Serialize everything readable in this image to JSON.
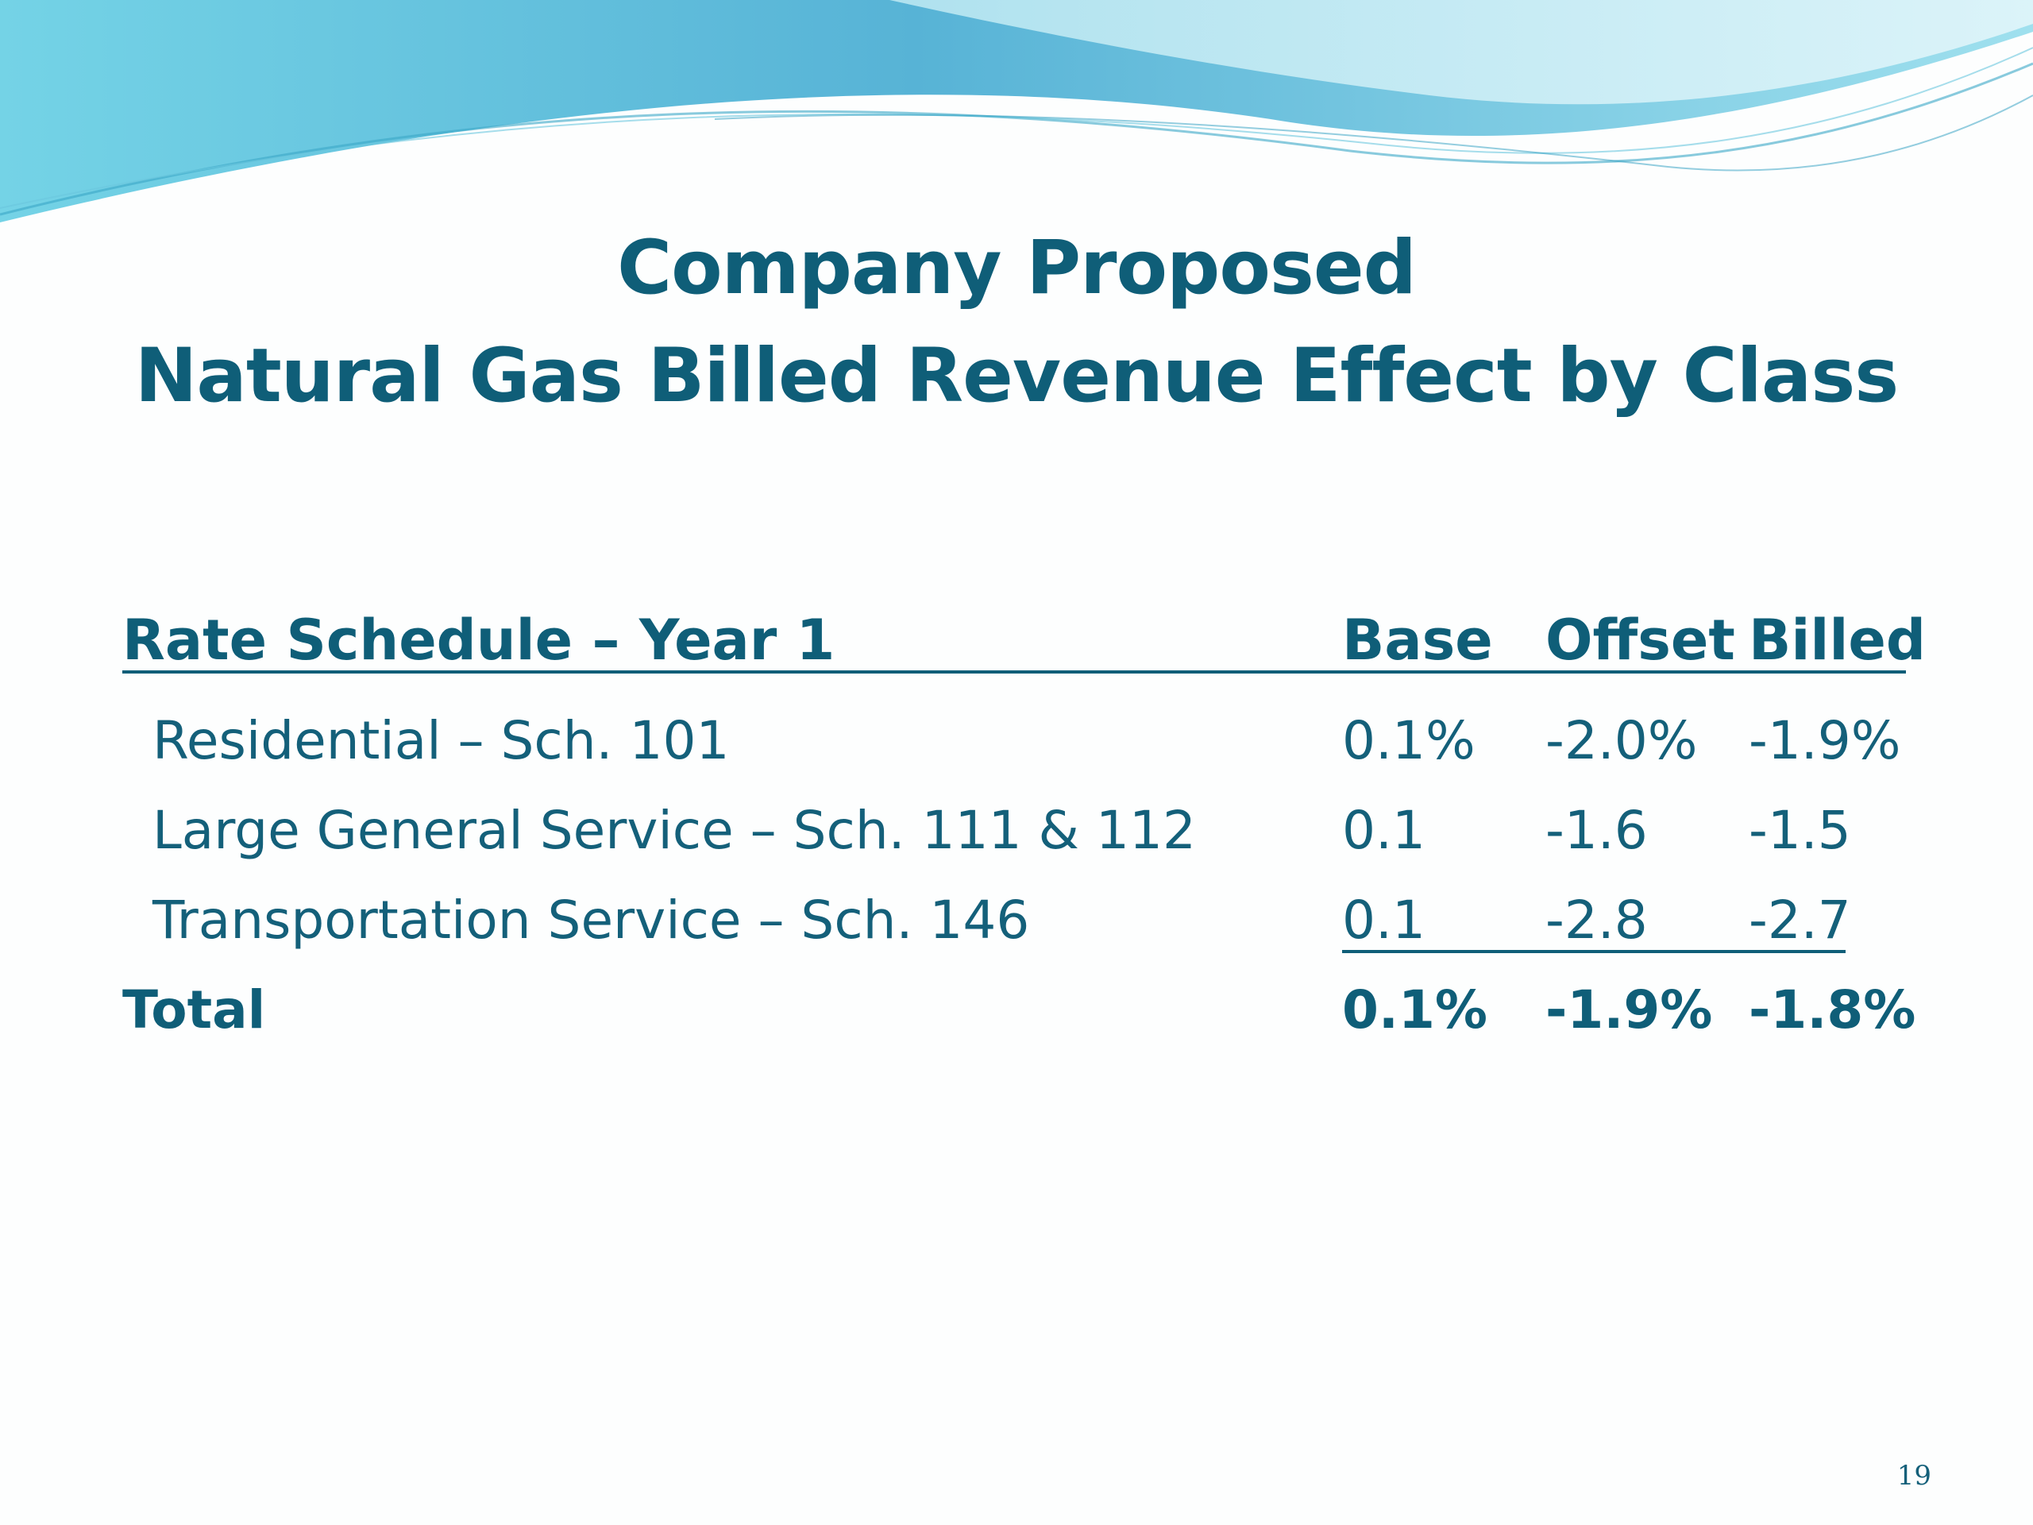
{
  "slide": {
    "title_line1": "Company Proposed",
    "title_line2": "Natural Gas Billed Revenue Effect by Class",
    "page_number": "19"
  },
  "table": {
    "headers": {
      "schedule": "Rate Schedule – Year 1",
      "base": "Base",
      "offset": "Offset",
      "billed": "Billed"
    },
    "rows": [
      {
        "label": "Residential – Sch. 101",
        "base": "0.1%",
        "offset": "-2.0%",
        "billed": "-1.9%"
      },
      {
        "label": "Large General Service – Sch. 111 & 112",
        "base": "0.1",
        "offset": "-1.6",
        "billed": "-1.5"
      },
      {
        "label": "Transportation Service – Sch. 146",
        "base": "0.1",
        "offset": "-2.8",
        "billed": "-2.7"
      }
    ],
    "total": {
      "label": "Total",
      "base": "0.1%",
      "offset": "-1.9%",
      "billed": "-1.8%"
    }
  },
  "colors": {
    "title": "#0f5e78",
    "body_text": "#14607a",
    "wave_light": "#7fd0e4",
    "wave_dark": "#2aa3c8"
  }
}
